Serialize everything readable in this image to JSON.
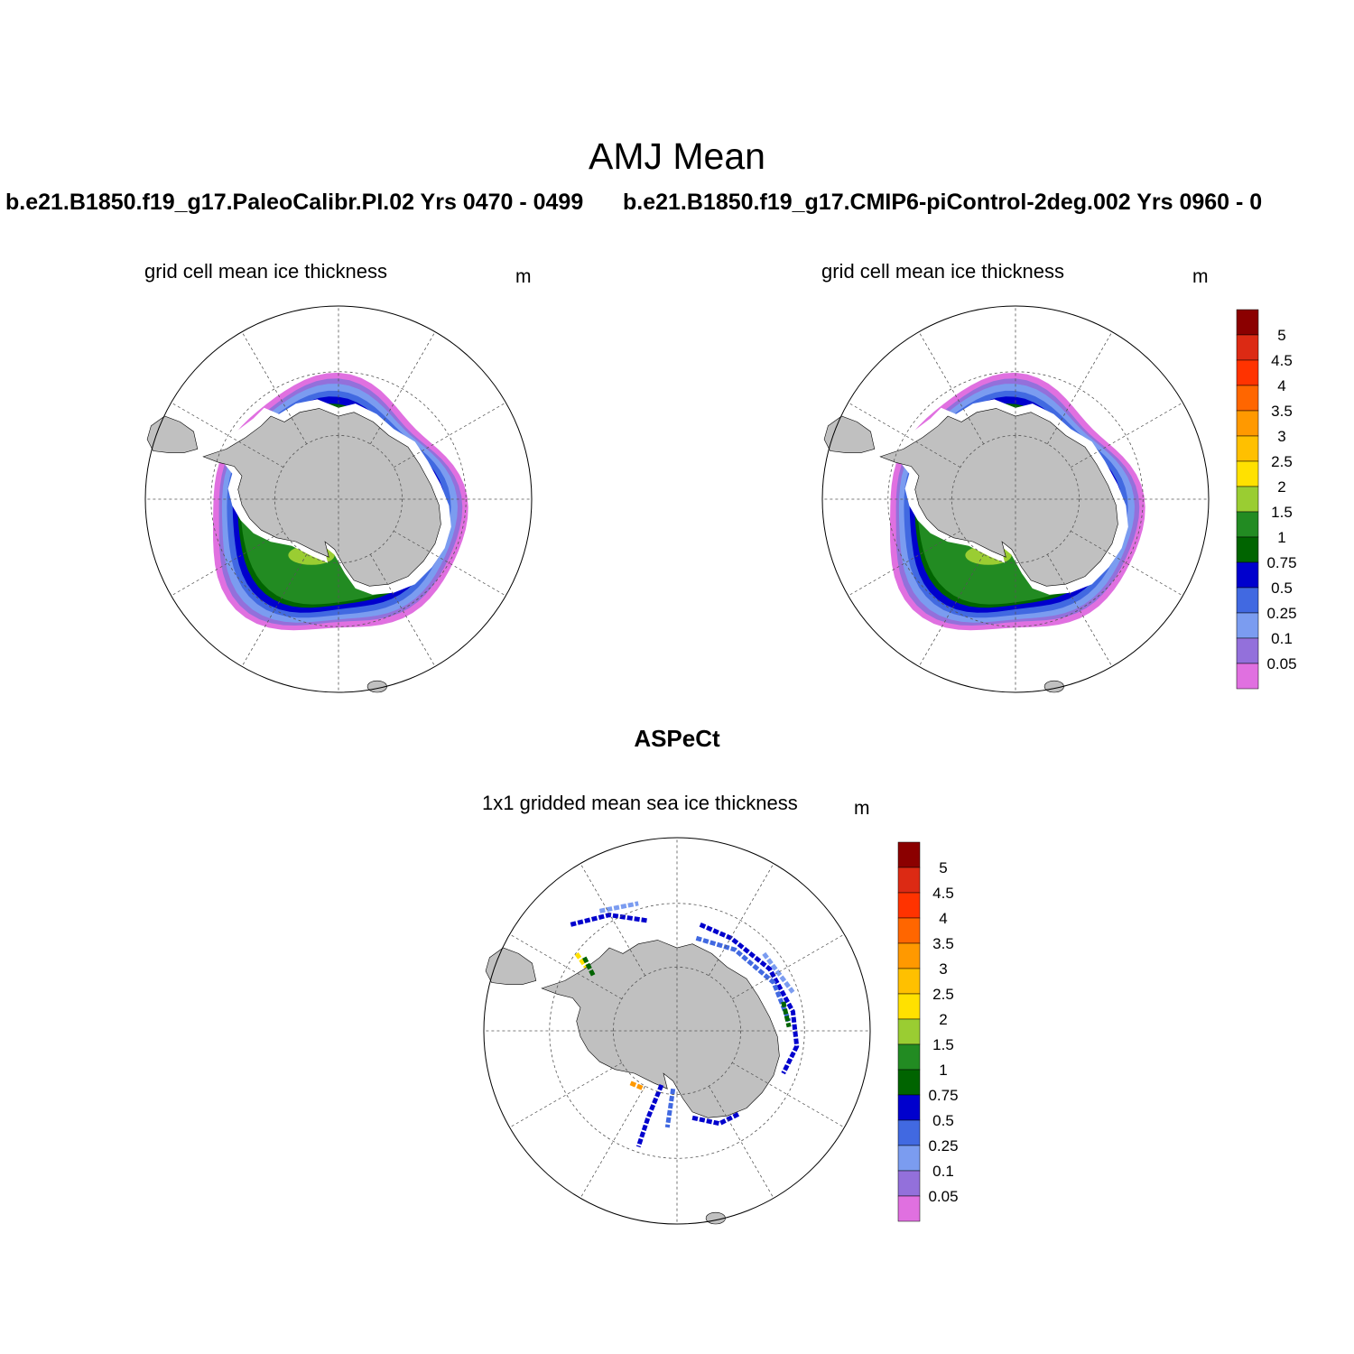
{
  "figure": {
    "title": "AMJ Mean",
    "panels": [
      {
        "id": "model-1",
        "case_title": "b.e21.B1850.f19_g17.PaleoCalibr.PI.02  Yrs 0470 - 0499",
        "subtitle": "grid cell mean ice thickness",
        "units": "m"
      },
      {
        "id": "model-2",
        "case_title": "b.e21.B1850.f19_g17.CMIP6-piControl-2deg.002  Yrs 0960 - 0",
        "subtitle": "grid cell mean ice thickness",
        "units": "m"
      },
      {
        "id": "observations",
        "case_title": "ASPeCt",
        "subtitle": "1x1 gridded mean sea ice thickness",
        "units": "m"
      }
    ]
  },
  "colorbar": {
    "labels": [
      "5",
      "4.5",
      "4",
      "3.5",
      "3",
      "2.5",
      "2",
      "1.5",
      "1",
      "0.75",
      "0.5",
      "0.25",
      "0.1",
      "0.05"
    ],
    "colors_top_to_bottom": [
      "#8b0000",
      "#dc2a14",
      "#ff3300",
      "#ff6600",
      "#ff9900",
      "#ffc000",
      "#ffe100",
      "#9acd32",
      "#228b22",
      "#006400",
      "#0000cd",
      "#4169e1",
      "#7b9cf0",
      "#9370db",
      "#e070e0"
    ]
  },
  "map_style": {
    "land_color": "#c0c0c0",
    "grid_style": "dashed",
    "projection": "south polar stereographic"
  }
}
